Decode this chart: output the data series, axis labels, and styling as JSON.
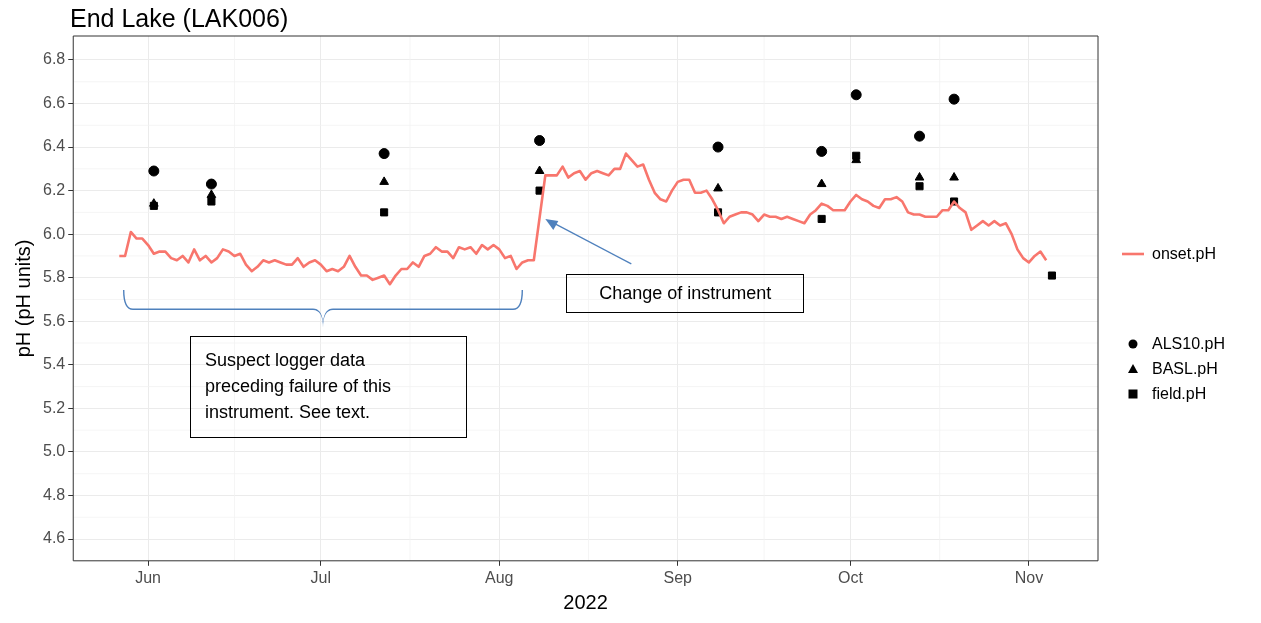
{
  "chart_data": {
    "type": "line",
    "title": "End Lake (LAK006)",
    "xlabel": "2022",
    "ylabel": "pH (pH units)",
    "xlim": [
      "2022-05-19",
      "2022-11-13"
    ],
    "xticks": [
      {
        "value": "2022-06-01",
        "label": "Jun"
      },
      {
        "value": "2022-07-01",
        "label": "Jul"
      },
      {
        "value": "2022-08-01",
        "label": "Aug"
      },
      {
        "value": "2022-09-01",
        "label": "Sep"
      },
      {
        "value": "2022-10-01",
        "label": "Oct"
      },
      {
        "value": "2022-11-01",
        "label": "Nov"
      }
    ],
    "ylim": [
      4.5,
      6.91
    ],
    "yticks": [
      4.6,
      4.8,
      {
        "value": 5,
        "label": "5.0"
      },
      5.2,
      5.4,
      5.6,
      5.8,
      {
        "value": 6,
        "label": "6.0"
      },
      6.2,
      6.4,
      6.6,
      6.8
    ],
    "grid": true,
    "legend": "right",
    "series": [
      {
        "name": "onset.pH",
        "color": "#f8766d",
        "marker": "none",
        "x": [
          "2022-05-27",
          "2022-05-28",
          "2022-05-29",
          "2022-05-30",
          "2022-05-31",
          "2022-06-01",
          "2022-06-02",
          "2022-06-03",
          "2022-06-04",
          "2022-06-05",
          "2022-06-06",
          "2022-06-07",
          "2022-06-08",
          "2022-06-09",
          "2022-06-10",
          "2022-06-11",
          "2022-06-12",
          "2022-06-13",
          "2022-06-14",
          "2022-06-15",
          "2022-06-16",
          "2022-06-17",
          "2022-06-18",
          "2022-06-19",
          "2022-06-20",
          "2022-06-21",
          "2022-06-22",
          "2022-06-23",
          "2022-06-24",
          "2022-06-25",
          "2022-06-26",
          "2022-06-27",
          "2022-06-28",
          "2022-06-29",
          "2022-06-30",
          "2022-07-01",
          "2022-07-02",
          "2022-07-03",
          "2022-07-04",
          "2022-07-05",
          "2022-07-06",
          "2022-07-07",
          "2022-07-08",
          "2022-07-09",
          "2022-07-10",
          "2022-07-11",
          "2022-07-12",
          "2022-07-13",
          "2022-07-14",
          "2022-07-15",
          "2022-07-16",
          "2022-07-17",
          "2022-07-18",
          "2022-07-19",
          "2022-07-20",
          "2022-07-21",
          "2022-07-22",
          "2022-07-23",
          "2022-07-24",
          "2022-07-25",
          "2022-07-26",
          "2022-07-27",
          "2022-07-28",
          "2022-07-29",
          "2022-07-30",
          "2022-07-31",
          "2022-08-01",
          "2022-08-02",
          "2022-08-03",
          "2022-08-04",
          "2022-08-05",
          "2022-08-06",
          "2022-08-07",
          "2022-08-09",
          "2022-08-10",
          "2022-08-11",
          "2022-08-12",
          "2022-08-13",
          "2022-08-14",
          "2022-08-15",
          "2022-08-16",
          "2022-08-17",
          "2022-08-18",
          "2022-08-19",
          "2022-08-20",
          "2022-08-21",
          "2022-08-22",
          "2022-08-23",
          "2022-08-24",
          "2022-08-25",
          "2022-08-26",
          "2022-08-27",
          "2022-08-28",
          "2022-08-29",
          "2022-08-30",
          "2022-08-31",
          "2022-09-01",
          "2022-09-02",
          "2022-09-03",
          "2022-09-04",
          "2022-09-05",
          "2022-09-06",
          "2022-09-07",
          "2022-09-08",
          "2022-09-09",
          "2022-09-10",
          "2022-09-11",
          "2022-09-12",
          "2022-09-13",
          "2022-09-14",
          "2022-09-15",
          "2022-09-16",
          "2022-09-17",
          "2022-09-18",
          "2022-09-19",
          "2022-09-20",
          "2022-09-21",
          "2022-09-22",
          "2022-09-23",
          "2022-09-24",
          "2022-09-25",
          "2022-09-26",
          "2022-09-27",
          "2022-09-28",
          "2022-09-29",
          "2022-09-30",
          "2022-10-01",
          "2022-10-02",
          "2022-10-03",
          "2022-10-04",
          "2022-10-05",
          "2022-10-06",
          "2022-10-07",
          "2022-10-08",
          "2022-10-09",
          "2022-10-10",
          "2022-10-11",
          "2022-10-12",
          "2022-10-13",
          "2022-10-14",
          "2022-10-15",
          "2022-10-16",
          "2022-10-17",
          "2022-10-18",
          "2022-10-19",
          "2022-10-20",
          "2022-10-21",
          "2022-10-22",
          "2022-10-23",
          "2022-10-24",
          "2022-10-25",
          "2022-10-26",
          "2022-10-27",
          "2022-10-28",
          "2022-10-29",
          "2022-10-30",
          "2022-10-31",
          "2022-11-01",
          "2022-11-02",
          "2022-11-03",
          "2022-11-04"
        ],
        "values": [
          5.9,
          5.9,
          6.01,
          5.98,
          5.98,
          5.95,
          5.91,
          5.92,
          5.92,
          5.89,
          5.88,
          5.9,
          5.87,
          5.93,
          5.88,
          5.9,
          5.87,
          5.89,
          5.93,
          5.92,
          5.9,
          5.91,
          5.86,
          5.83,
          5.85,
          5.88,
          5.87,
          5.88,
          5.87,
          5.86,
          5.86,
          5.89,
          5.85,
          5.87,
          5.88,
          5.86,
          5.83,
          5.84,
          5.83,
          5.85,
          5.9,
          5.85,
          5.81,
          5.81,
          5.79,
          5.8,
          5.81,
          5.77,
          5.81,
          5.84,
          5.84,
          5.87,
          5.85,
          5.9,
          5.91,
          5.94,
          5.92,
          5.92,
          5.89,
          5.94,
          5.93,
          5.94,
          5.91,
          5.95,
          5.93,
          5.95,
          5.93,
          5.89,
          5.9,
          5.84,
          5.87,
          5.88,
          5.88,
          6.27,
          6.27,
          6.27,
          6.31,
          6.26,
          6.28,
          6.29,
          6.25,
          6.28,
          6.29,
          6.28,
          6.27,
          6.3,
          6.3,
          6.37,
          6.34,
          6.31,
          6.32,
          6.25,
          6.19,
          6.16,
          6.15,
          6.2,
          6.24,
          6.25,
          6.25,
          6.19,
          6.19,
          6.2,
          6.16,
          6.11,
          6.05,
          6.08,
          6.09,
          6.1,
          6.1,
          6.09,
          6.06,
          6.09,
          6.08,
          6.08,
          6.07,
          6.08,
          6.07,
          6.06,
          6.05,
          6.09,
          6.11,
          6.14,
          6.13,
          6.11,
          6.11,
          6.11,
          6.15,
          6.18,
          6.16,
          6.15,
          6.13,
          6.12,
          6.16,
          6.16,
          6.17,
          6.15,
          6.1,
          6.09,
          6.09,
          6.08,
          6.08,
          6.08,
          6.11,
          6.11,
          6.15,
          6.12,
          6.1,
          6.02,
          6.04,
          6.06,
          6.04,
          6.06,
          6.04,
          6.05,
          6.0,
          5.93,
          5.89,
          5.87,
          5.9,
          5.92,
          5.88
        ]
      },
      {
        "name": "ALS10.pH",
        "type": "scatter",
        "color": "#000000",
        "marker": "circle",
        "x": [
          "2022-06-02",
          "2022-06-12",
          "2022-07-12",
          "2022-08-08",
          "2022-09-08",
          "2022-09-26",
          "2022-10-02",
          "2022-10-13",
          "2022-10-19"
        ],
        "values": [
          6.29,
          6.23,
          6.37,
          6.43,
          6.4,
          6.38,
          6.64,
          6.45,
          6.62
        ]
      },
      {
        "name": "BASL.pH",
        "type": "scatter",
        "color": "#000000",
        "marker": "triangle",
        "x": [
          "2022-06-02",
          "2022-06-12",
          "2022-07-12",
          "2022-08-08",
          "2022-09-08",
          "2022-09-26",
          "2022-10-02",
          "2022-10-13",
          "2022-10-19"
        ],
        "values": [
          6.14,
          6.18,
          6.24,
          6.29,
          6.21,
          6.23,
          6.34,
          6.26,
          6.26
        ]
      },
      {
        "name": "field.pH",
        "type": "scatter",
        "color": "#000000",
        "marker": "square",
        "x": [
          "2022-06-02",
          "2022-06-12",
          "2022-07-12",
          "2022-08-08",
          "2022-09-08",
          "2022-09-26",
          "2022-10-02",
          "2022-10-13",
          "2022-10-19",
          "2022-11-05"
        ],
        "values": [
          6.13,
          6.15,
          6.1,
          6.2,
          6.1,
          6.07,
          6.36,
          6.22,
          6.15,
          5.81
        ]
      }
    ],
    "annotations": [
      {
        "text": "Change of instrument",
        "x": "2022-08-09",
        "y": 6.07
      },
      "Suspect logger data preceding failure of this instrument. See text."
    ]
  }
}
